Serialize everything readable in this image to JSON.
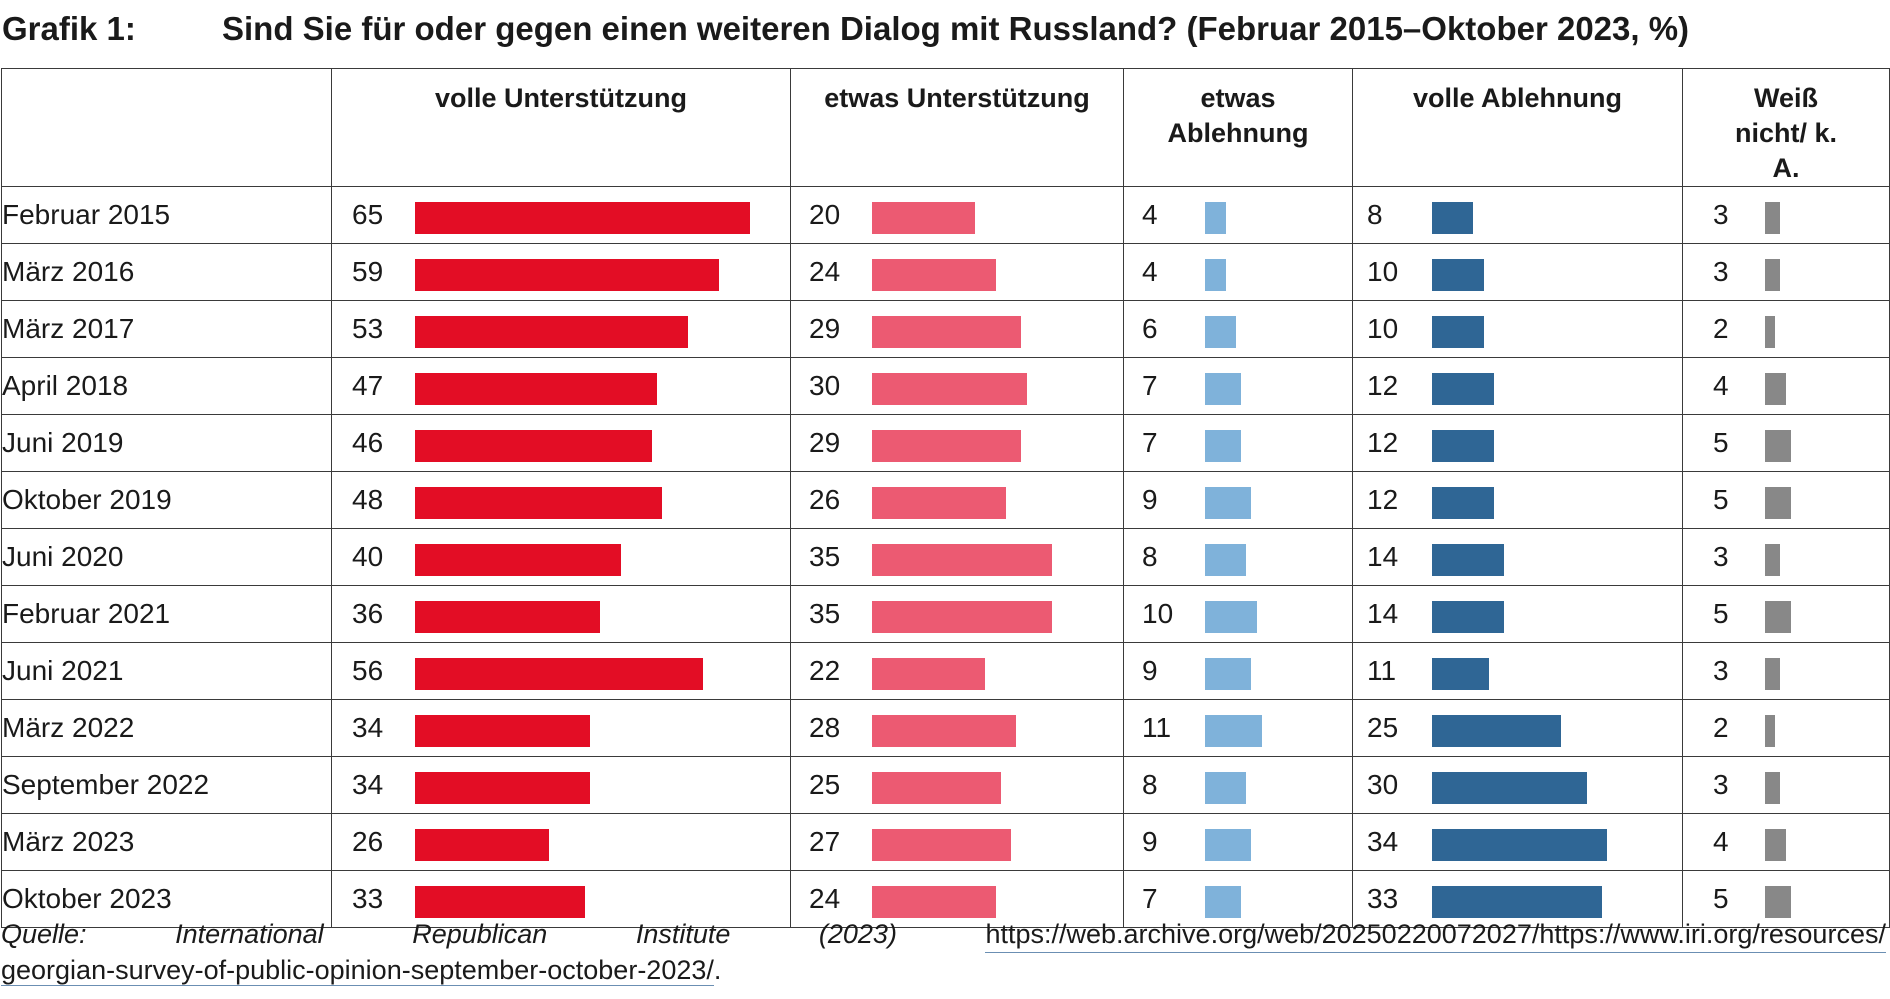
{
  "title": {
    "label": "Grafik 1:",
    "text": "Sind Sie für oder gegen einen weiteren Dialog mit Russland? (Februar 2015–Oktober 2023, %)"
  },
  "chart_data": {
    "type": "bar",
    "categories": [
      "Februar 2015",
      "März 2016",
      "März 2017",
      "April 2018",
      "Juni 2019",
      "Oktober 2019",
      "Juni 2020",
      "Februar 2021",
      "Juni 2021",
      "März 2022",
      "September 2022",
      "März 2023",
      "Oktober 2023"
    ],
    "series": [
      {
        "name": "volle Unterstützung",
        "color": "#e30d25",
        "values": [
          65,
          59,
          53,
          47,
          46,
          48,
          40,
          36,
          56,
          34,
          34,
          26,
          33
        ]
      },
      {
        "name": "etwas Unterstützung",
        "color": "#ec5a72",
        "values": [
          20,
          24,
          29,
          30,
          29,
          26,
          35,
          35,
          22,
          28,
          25,
          27,
          24
        ]
      },
      {
        "name": "etwas Ablehnung",
        "color": "#7fb2da",
        "values": [
          4,
          4,
          6,
          7,
          7,
          9,
          8,
          10,
          9,
          11,
          8,
          9,
          7
        ]
      },
      {
        "name": "volle Ablehnung",
        "color": "#2f6695",
        "values": [
          8,
          10,
          10,
          12,
          12,
          12,
          14,
          14,
          11,
          25,
          30,
          34,
          33
        ]
      },
      {
        "name": "Weiß nicht/ k. A.",
        "color": "#888888",
        "values": [
          3,
          3,
          2,
          4,
          5,
          5,
          3,
          5,
          3,
          2,
          3,
          4,
          5
        ]
      }
    ]
  },
  "footer": {
    "source_words": [
      "Quelle:",
      "International",
      "Republican",
      "Institute",
      "(2023)"
    ],
    "url_part1": "https://web.archive.org/web/20250220072027/https://www.iri.org/resources/",
    "url_part2": "georgian-survey-of-public-opinion-september-october-2023/",
    "trailing": "."
  }
}
